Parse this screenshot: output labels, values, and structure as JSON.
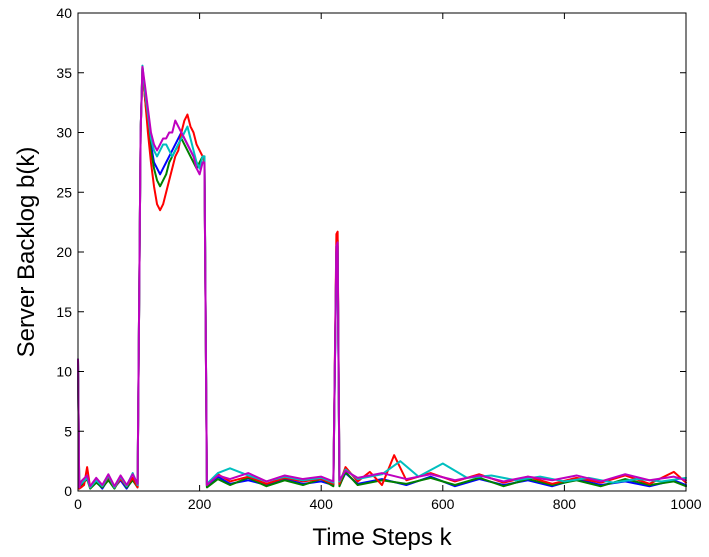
{
  "chart_data": {
    "type": "line",
    "title": "",
    "xlabel": "Time Steps k",
    "ylabel": "Server Backlog b(k)",
    "xlim": [
      0,
      1000
    ],
    "ylim": [
      0,
      40
    ],
    "xticks": [
      0,
      200,
      400,
      600,
      800,
      1000
    ],
    "yticks": [
      0,
      5,
      10,
      15,
      20,
      25,
      30,
      35,
      40
    ],
    "grid": false,
    "legend": "none",
    "series": [
      {
        "color": "#0000ff",
        "x": [
          0,
          2,
          5,
          15,
          20,
          30,
          40,
          50,
          60,
          70,
          80,
          90,
          98,
          103,
          106,
          110,
          115,
          120,
          125,
          130,
          135,
          140,
          145,
          150,
          155,
          160,
          165,
          170,
          175,
          180,
          185,
          190,
          195,
          200,
          205,
          208,
          212,
          230,
          250,
          280,
          310,
          340,
          370,
          400,
          420,
          425,
          427,
          430,
          440,
          460,
          500,
          540,
          580,
          620,
          660,
          700,
          740,
          780,
          820,
          860,
          900,
          940,
          980,
          1000
        ],
        "y": [
          11,
          0.2,
          0.4,
          1.2,
          0.3,
          0.8,
          0.2,
          1.0,
          0.3,
          0.9,
          0.2,
          1.0,
          0.4,
          30,
          35.4,
          33,
          31,
          29,
          27.5,
          27,
          26.5,
          27,
          27.5,
          28,
          28.5,
          29,
          29.5,
          30,
          29.5,
          29,
          28.5,
          28,
          27.5,
          27,
          27.5,
          27.5,
          0.4,
          1.2,
          0.6,
          0.9,
          0.5,
          1.0,
          0.6,
          0.8,
          0.5,
          20,
          20.5,
          0.5,
          1.5,
          0.6,
          1.0,
          0.5,
          1.2,
          0.4,
          1.0,
          0.5,
          0.9,
          0.4,
          1.0,
          0.5,
          0.8,
          0.4,
          0.9,
          0.5
        ]
      },
      {
        "color": "#008000",
        "x": [
          0,
          2,
          5,
          15,
          20,
          30,
          40,
          50,
          60,
          70,
          80,
          90,
          98,
          103,
          106,
          110,
          115,
          120,
          125,
          130,
          135,
          140,
          145,
          150,
          155,
          160,
          165,
          170,
          175,
          180,
          185,
          190,
          195,
          200,
          205,
          208,
          212,
          230,
          250,
          280,
          310,
          340,
          370,
          400,
          420,
          425,
          427,
          430,
          440,
          460,
          500,
          540,
          580,
          620,
          660,
          700,
          740,
          780,
          820,
          860,
          900,
          940,
          980,
          1000
        ],
        "y": [
          11,
          0.3,
          0.5,
          1.0,
          0.2,
          0.7,
          0.3,
          0.9,
          0.2,
          1.1,
          0.3,
          0.9,
          0.3,
          30,
          35.5,
          33,
          30.5,
          28.5,
          27,
          26,
          25.5,
          26,
          26.5,
          27.5,
          28,
          28.5,
          29,
          29.5,
          29,
          28.5,
          28,
          27.5,
          27,
          27.5,
          28,
          28,
          0.3,
          1.0,
          0.5,
          1.1,
          0.4,
          0.9,
          0.5,
          1.0,
          0.4,
          20.5,
          21,
          0.4,
          1.6,
          0.5,
          0.9,
          0.6,
          1.1,
          0.5,
          1.1,
          0.4,
          1.0,
          0.5,
          0.9,
          0.4,
          1.0,
          0.5,
          0.8,
          0.4
        ]
      },
      {
        "color": "#ff0000",
        "x": [
          0,
          2,
          5,
          10,
          15,
          20,
          30,
          40,
          50,
          60,
          70,
          80,
          90,
          98,
          103,
          106,
          110,
          115,
          120,
          125,
          130,
          135,
          140,
          145,
          150,
          155,
          160,
          165,
          170,
          175,
          180,
          185,
          190,
          195,
          200,
          205,
          208,
          212,
          230,
          250,
          280,
          310,
          340,
          370,
          400,
          420,
          425,
          427,
          430,
          440,
          460,
          480,
          500,
          520,
          540,
          580,
          620,
          660,
          700,
          740,
          780,
          820,
          860,
          900,
          940,
          980,
          1000
        ],
        "y": [
          11,
          0.2,
          0.3,
          0.5,
          2.0,
          0.3,
          1.0,
          0.4,
          1.2,
          0.3,
          1.0,
          0.4,
          1.1,
          0.3,
          30,
          35.3,
          33,
          30,
          27.5,
          25.5,
          24,
          23.5,
          24,
          25,
          26,
          27,
          28,
          28.5,
          30,
          31,
          31.5,
          30.5,
          30,
          29,
          28.5,
          28,
          27.5,
          0.5,
          1.4,
          0.8,
          1.2,
          0.6,
          1.1,
          0.8,
          1.0,
          0.6,
          21.5,
          21.7,
          0.6,
          2.0,
          0.8,
          1.6,
          0.5,
          3.0,
          0.9,
          1.5,
          0.8,
          1.4,
          0.7,
          1.2,
          0.6,
          1.1,
          0.7,
          1.3,
          0.6,
          1.6,
          0.7
        ]
      },
      {
        "color": "#00bfbf",
        "x": [
          0,
          2,
          5,
          15,
          20,
          30,
          40,
          50,
          60,
          70,
          80,
          90,
          98,
          103,
          106,
          110,
          115,
          120,
          125,
          130,
          135,
          140,
          145,
          150,
          155,
          160,
          165,
          170,
          175,
          180,
          185,
          190,
          195,
          200,
          205,
          208,
          212,
          230,
          250,
          280,
          310,
          340,
          370,
          400,
          420,
          425,
          427,
          430,
          440,
          460,
          500,
          530,
          560,
          600,
          640,
          680,
          720,
          760,
          800,
          840,
          880,
          920,
          960,
          1000
        ],
        "y": [
          11,
          0.4,
          0.6,
          1.1,
          0.3,
          0.9,
          0.4,
          1.3,
          0.3,
          1.2,
          0.4,
          1.5,
          0.5,
          30,
          35.6,
          33.5,
          31.5,
          29.5,
          28.5,
          28,
          28.5,
          29,
          29,
          28.5,
          28,
          28.5,
          29,
          29.5,
          30,
          30.5,
          29.5,
          28.5,
          27.5,
          27,
          28,
          28,
          0.6,
          1.5,
          1.9,
          1.3,
          0.8,
          1.2,
          0.9,
          1.1,
          0.7,
          20,
          20.3,
          0.8,
          1.8,
          1.0,
          1.4,
          2.5,
          1.2,
          2.3,
          1.1,
          1.3,
          0.9,
          1.2,
          0.8,
          1.1,
          0.7,
          1.0,
          0.8,
          1.1
        ]
      },
      {
        "color": "#bf00bf",
        "x": [
          0,
          2,
          5,
          15,
          20,
          30,
          40,
          50,
          60,
          70,
          80,
          90,
          98,
          103,
          106,
          110,
          115,
          120,
          125,
          130,
          135,
          140,
          145,
          150,
          155,
          160,
          165,
          170,
          175,
          180,
          185,
          190,
          195,
          200,
          205,
          208,
          212,
          230,
          250,
          280,
          310,
          340,
          370,
          400,
          420,
          425,
          427,
          430,
          440,
          460,
          500,
          540,
          580,
          620,
          660,
          700,
          740,
          780,
          820,
          860,
          900,
          940,
          980,
          1000
        ],
        "y": [
          11,
          0.3,
          0.8,
          1.3,
          0.4,
          1.1,
          0.5,
          1.4,
          0.4,
          1.3,
          0.5,
          1.4,
          0.6,
          30,
          35.5,
          34,
          32,
          30,
          29,
          28.5,
          29,
          29.5,
          29.5,
          30,
          30,
          31,
          30.5,
          30,
          29.5,
          29,
          28.5,
          28,
          27,
          26.5,
          27.5,
          27.5,
          0.5,
          1.3,
          1.0,
          1.5,
          0.8,
          1.3,
          1.0,
          1.2,
          0.8,
          20.5,
          20.8,
          0.9,
          1.7,
          1.1,
          1.5,
          1.0,
          1.4,
          0.9,
          1.3,
          0.8,
          1.2,
          0.9,
          1.3,
          0.8,
          1.4,
          0.9,
          1.2,
          0.9
        ]
      }
    ]
  }
}
